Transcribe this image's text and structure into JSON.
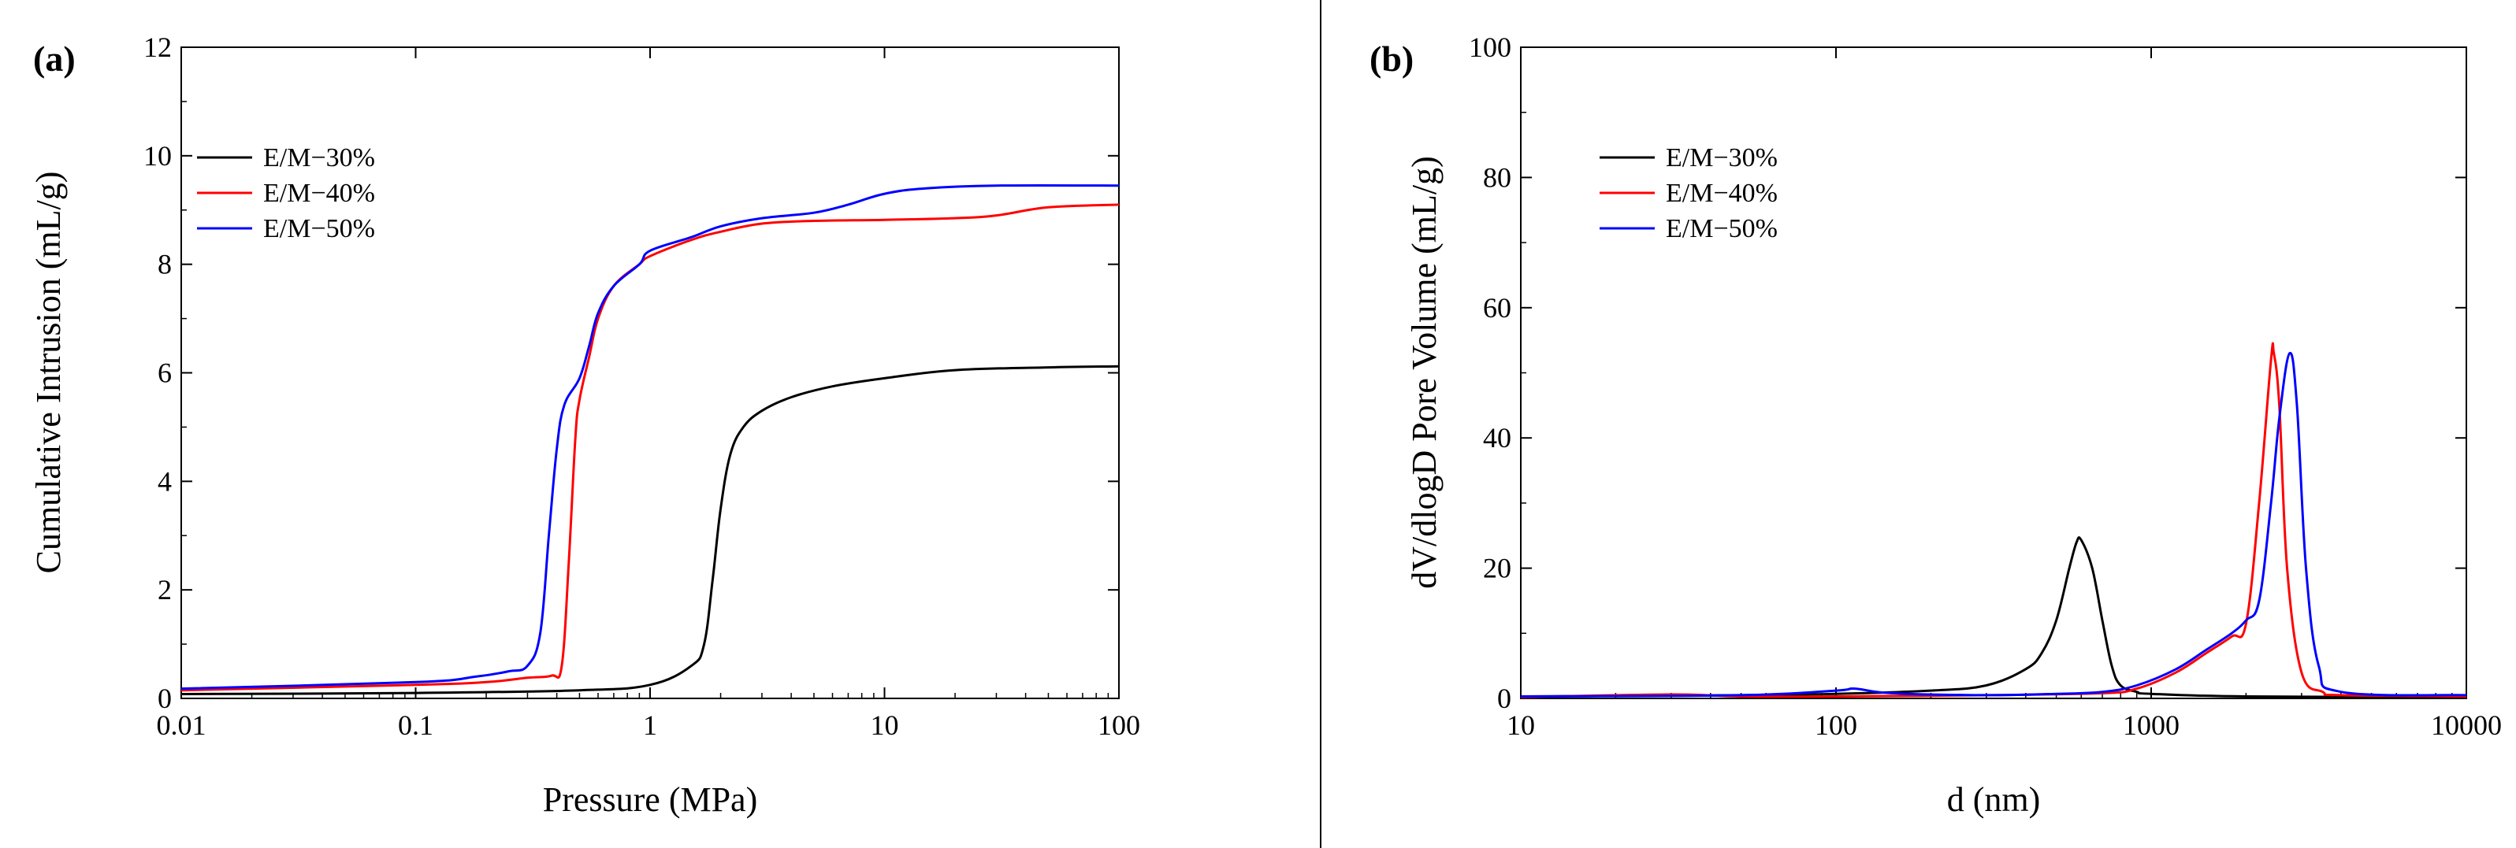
{
  "chart_data": [
    {
      "type": "line",
      "panel_label": "(a)",
      "xlabel": "Pressure  (MPa)",
      "ylabel": "Cumulative Intrusion (mL/g)",
      "xscale": "log",
      "xlim": [
        0.01,
        100
      ],
      "ylim": [
        0,
        12
      ],
      "x_ticks": [
        0.01,
        0.1,
        1,
        10,
        100
      ],
      "x_tick_labels": [
        "0.01",
        "0.1",
        "1",
        "10",
        "100"
      ],
      "y_ticks": [
        0,
        2,
        4,
        6,
        8,
        10,
        12
      ],
      "y_tick_labels": [
        "0",
        "2",
        "4",
        "6",
        "8",
        "10",
        "12"
      ],
      "grid": false,
      "legend_position": "upper-left",
      "series": [
        {
          "name": "E/M−30%",
          "color": "#000000",
          "points": [
            [
              0.01,
              0.08
            ],
            [
              0.1,
              0.1
            ],
            [
              0.5,
              0.15
            ],
            [
              1.0,
              0.25
            ],
            [
              1.5,
              0.6
            ],
            [
              1.7,
              1.0
            ],
            [
              1.85,
              2.2
            ],
            [
              2.0,
              3.5
            ],
            [
              2.2,
              4.5
            ],
            [
              2.5,
              5.0
            ],
            [
              3.0,
              5.3
            ],
            [
              4.0,
              5.55
            ],
            [
              6.0,
              5.75
            ],
            [
              10,
              5.9
            ],
            [
              20,
              6.05
            ],
            [
              50,
              6.1
            ],
            [
              100,
              6.12
            ]
          ]
        },
        {
          "name": "E/M−40%",
          "color": "#ff0000",
          "points": [
            [
              0.01,
              0.15
            ],
            [
              0.1,
              0.25
            ],
            [
              0.2,
              0.3
            ],
            [
              0.3,
              0.38
            ],
            [
              0.38,
              0.42
            ],
            [
              0.42,
              0.6
            ],
            [
              0.45,
              2.5
            ],
            [
              0.48,
              4.8
            ],
            [
              0.5,
              5.5
            ],
            [
              0.55,
              6.3
            ],
            [
              0.6,
              7.0
            ],
            [
              0.7,
              7.6
            ],
            [
              0.9,
              8.0
            ],
            [
              1.0,
              8.15
            ],
            [
              1.5,
              8.45
            ],
            [
              2.0,
              8.6
            ],
            [
              3.0,
              8.75
            ],
            [
              5.0,
              8.8
            ],
            [
              10,
              8.82
            ],
            [
              20,
              8.85
            ],
            [
              30,
              8.9
            ],
            [
              50,
              9.05
            ],
            [
              100,
              9.1
            ]
          ]
        },
        {
          "name": "E/M−50%",
          "color": "#0000ff",
          "points": [
            [
              0.01,
              0.18
            ],
            [
              0.1,
              0.3
            ],
            [
              0.18,
              0.4
            ],
            [
              0.25,
              0.5
            ],
            [
              0.3,
              0.6
            ],
            [
              0.34,
              1.2
            ],
            [
              0.37,
              3.0
            ],
            [
              0.4,
              4.6
            ],
            [
              0.43,
              5.4
            ],
            [
              0.5,
              5.9
            ],
            [
              0.55,
              6.5
            ],
            [
              0.6,
              7.1
            ],
            [
              0.7,
              7.6
            ],
            [
              0.9,
              8.0
            ],
            [
              1.0,
              8.25
            ],
            [
              1.5,
              8.5
            ],
            [
              2.0,
              8.7
            ],
            [
              3.0,
              8.85
            ],
            [
              5.0,
              8.95
            ],
            [
              7.0,
              9.1
            ],
            [
              10,
              9.3
            ],
            [
              15,
              9.4
            ],
            [
              30,
              9.45
            ],
            [
              100,
              9.45
            ]
          ]
        }
      ]
    },
    {
      "type": "line",
      "panel_label": "(b)",
      "xlabel": "d (nm)",
      "ylabel": "dV/dlogD Pore Volume  (mL/g)",
      "xscale": "log",
      "xlim": [
        10,
        10000
      ],
      "ylim": [
        0,
        100
      ],
      "x_ticks": [
        10,
        100,
        1000,
        10000
      ],
      "x_tick_labels": [
        "10",
        "100",
        "1000",
        "10000"
      ],
      "y_ticks": [
        0,
        20,
        40,
        60,
        80,
        100
      ],
      "y_tick_labels": [
        "0",
        "20",
        "40",
        "60",
        "80",
        "100"
      ],
      "grid": false,
      "legend_position": "upper-left",
      "series": [
        {
          "name": "E/M−30%",
          "color": "#000000",
          "points": [
            [
              10,
              0.3
            ],
            [
              50,
              0.5
            ],
            [
              100,
              0.7
            ],
            [
              200,
              1.2
            ],
            [
              300,
              2.0
            ],
            [
              400,
              4.5
            ],
            [
              450,
              7.0
            ],
            [
              500,
              12.0
            ],
            [
              550,
              20.0
            ],
            [
              580,
              24.0
            ],
            [
              600,
              24.3
            ],
            [
              650,
              20.0
            ],
            [
              700,
              12.0
            ],
            [
              750,
              5.0
            ],
            [
              800,
              2.0
            ],
            [
              900,
              1.0
            ],
            [
              1000,
              0.7
            ],
            [
              2000,
              0.3
            ],
            [
              10000,
              0.2
            ]
          ]
        },
        {
          "name": "E/M−40%",
          "color": "#ff0000",
          "points": [
            [
              10,
              0.2
            ],
            [
              30,
              0.6
            ],
            [
              50,
              0.3
            ],
            [
              100,
              0.3
            ],
            [
              300,
              0.5
            ],
            [
              700,
              0.8
            ],
            [
              900,
              1.5
            ],
            [
              1200,
              4.0
            ],
            [
              1500,
              7.0
            ],
            [
              1800,
              9.5
            ],
            [
              2000,
              11.5
            ],
            [
              2200,
              30.0
            ],
            [
              2400,
              52.0
            ],
            [
              2450,
              53.0
            ],
            [
              2550,
              45.0
            ],
            [
              2700,
              20.0
            ],
            [
              3000,
              4.0
            ],
            [
              3500,
              1.0
            ],
            [
              4000,
              0.5
            ],
            [
              10000,
              0.3
            ]
          ]
        },
        {
          "name": "E/M−50%",
          "color": "#0000ff",
          "points": [
            [
              10,
              0.3
            ],
            [
              50,
              0.5
            ],
            [
              100,
              1.2
            ],
            [
              115,
              1.5
            ],
            [
              150,
              0.8
            ],
            [
              300,
              0.5
            ],
            [
              500,
              0.7
            ],
            [
              700,
              1.0
            ],
            [
              900,
              2.0
            ],
            [
              1200,
              4.5
            ],
            [
              1500,
              7.5
            ],
            [
              1800,
              10.0
            ],
            [
              2000,
              12.0
            ],
            [
              2200,
              15.0
            ],
            [
              2400,
              30.0
            ],
            [
              2550,
              43.0
            ],
            [
              2750,
              53.0
            ],
            [
              2900,
              45.0
            ],
            [
              3100,
              20.0
            ],
            [
              3400,
              5.0
            ],
            [
              4000,
              1.0
            ],
            [
              10000,
              0.5
            ]
          ]
        }
      ]
    }
  ]
}
